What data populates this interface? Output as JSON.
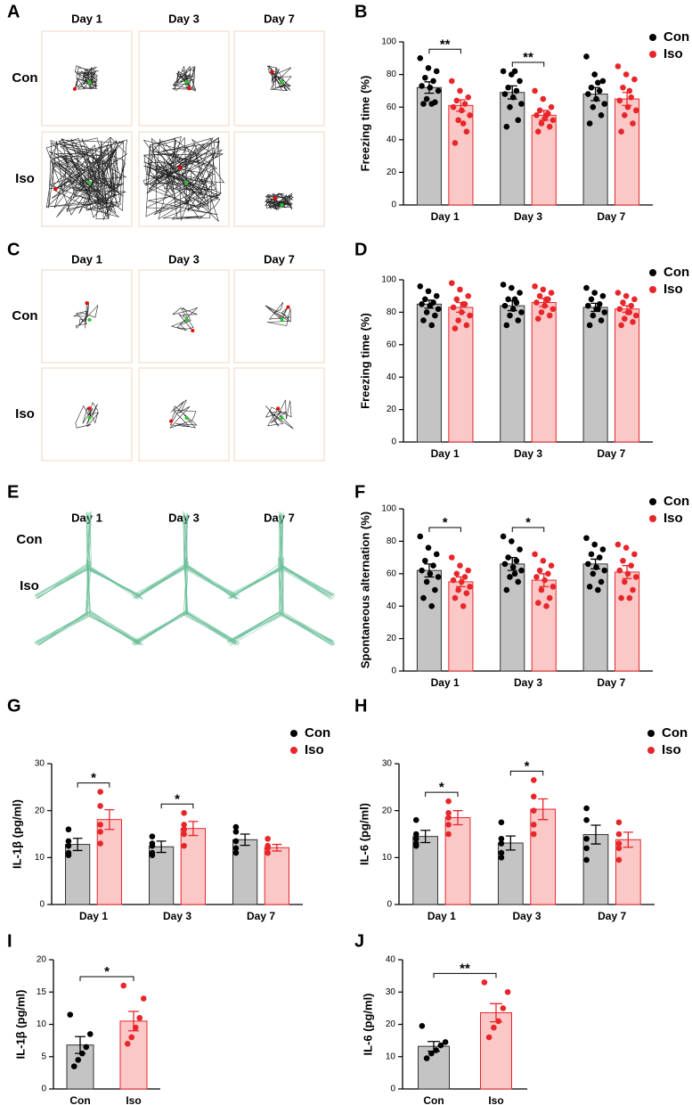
{
  "trajectory_panels": [
    {
      "letter": "A",
      "days": [
        "Day 1",
        "Day 3",
        "Day 7"
      ],
      "groups": [
        "Con",
        "Iso"
      ]
    },
    {
      "letter": "C",
      "days": [
        "Day 1",
        "Day 3",
        "Day 7"
      ],
      "groups": [
        "Con",
        "Iso"
      ]
    },
    {
      "letter": "E",
      "days": [
        "Day 1",
        "Day 3",
        "Day 7"
      ],
      "groups": [
        "Con",
        "Iso"
      ]
    }
  ],
  "chart_data": [
    {
      "type": "bar",
      "panel": "B",
      "ylabel": "Freezing time (%)",
      "categories": [
        "Day 1",
        "Day 3",
        "Day 7"
      ],
      "ylim": [
        0,
        100
      ],
      "yticks": [
        0,
        20,
        40,
        60,
        80,
        100
      ],
      "legend": "upper right",
      "significance": [
        "**",
        "**",
        null
      ],
      "series": [
        {
          "name": "Con",
          "color": "#000000",
          "bar_color": "#c4c4c4",
          "values": [
            72,
            69,
            68
          ],
          "errors": [
            3.5,
            4,
            4
          ],
          "points": [
            [
              90,
              84,
              82,
              78,
              76,
              73,
              72,
              70,
              65,
              63,
              62,
              62
            ],
            [
              82,
              80,
              76,
              72,
              70,
              68,
              66,
              62,
              60,
              52,
              48,
              82
            ],
            [
              91,
              80,
              76,
              72,
              70,
              68,
              65,
              62,
              60,
              55,
              50,
              75
            ]
          ]
        },
        {
          "name": "Iso",
          "color": "#e8262a",
          "bar_color": "#fbc8c8",
          "values": [
            61,
            55,
            65
          ],
          "errors": [
            3.5,
            3,
            4
          ],
          "points": [
            [
              76,
              70,
              66,
              64,
              62,
              60,
              58,
              55,
              52,
              45,
              38,
              50
            ],
            [
              70,
              65,
              60,
              58,
              56,
              55,
              53,
              52,
              50,
              48,
              45,
              55
            ],
            [
              85,
              80,
              77,
              72,
              66,
              64,
              60,
              58,
              55,
              50,
              45,
              70
            ]
          ]
        }
      ]
    },
    {
      "type": "bar",
      "panel": "D",
      "ylabel": "Freezing time (%)",
      "categories": [
        "Day 1",
        "Day 3",
        "Day 7"
      ],
      "ylim": [
        0,
        100
      ],
      "yticks": [
        0,
        20,
        40,
        60,
        80,
        100
      ],
      "legend": "upper right",
      "significance": [
        null,
        null,
        null
      ],
      "series": [
        {
          "name": "Con",
          "color": "#000000",
          "bar_color": "#c4c4c4",
          "values": [
            85,
            84,
            83
          ],
          "errors": [
            2.5,
            3,
            2.5
          ],
          "points": [
            [
              96,
              93,
              90,
              88,
              86,
              85,
              84,
              82,
              80,
              78,
              75,
              72
            ],
            [
              97,
              95,
              92,
              88,
              86,
              84,
              82,
              80,
              78,
              75,
              72,
              88
            ],
            [
              95,
              92,
              90,
              88,
              85,
              84,
              82,
              80,
              78,
              75,
              72,
              82
            ]
          ]
        },
        {
          "name": "Iso",
          "color": "#e8262a",
          "bar_color": "#fbc8c8",
          "values": [
            83,
            86,
            82
          ],
          "errors": [
            3,
            2.5,
            2
          ],
          "points": [
            [
              98,
              94,
              90,
              88,
              85,
              83,
              80,
              78,
              75,
              72,
              70,
              85
            ],
            [
              96,
              94,
              92,
              90,
              88,
              86,
              84,
              82,
              80,
              78,
              76,
              88
            ],
            [
              92,
              90,
              88,
              86,
              84,
              82,
              80,
              78,
              76,
              74,
              72,
              80
            ]
          ]
        }
      ]
    },
    {
      "type": "bar",
      "panel": "F",
      "ylabel": "Spontaneous alternation (%)",
      "categories": [
        "Day 1",
        "Day 3",
        "Day 7"
      ],
      "ylim": [
        0,
        100
      ],
      "yticks": [
        0,
        20,
        40,
        60,
        80,
        100
      ],
      "legend": "upper right",
      "significance": [
        "*",
        "*",
        null
      ],
      "series": [
        {
          "name": "Con",
          "color": "#000000",
          "bar_color": "#c4c4c4",
          "values": [
            62,
            66,
            66
          ],
          "errors": [
            4,
            4,
            3
          ],
          "points": [
            [
              83,
              76,
              72,
              68,
              65,
              62,
              60,
              58,
              55,
              50,
              45,
              40
            ],
            [
              83,
              80,
              75,
              70,
              68,
              66,
              64,
              62,
              58,
              55,
              50,
              60
            ],
            [
              82,
              78,
              75,
              72,
              70,
              66,
              64,
              62,
              60,
              55,
              52,
              50
            ]
          ]
        },
        {
          "name": "Iso",
          "color": "#e8262a",
          "bar_color": "#fbc8c8",
          "values": [
            55,
            56,
            61
          ],
          "errors": [
            3,
            4,
            4
          ],
          "points": [
            [
              70,
              65,
              62,
              60,
              58,
              56,
              55,
              52,
              50,
              48,
              45,
              40
            ],
            [
              72,
              68,
              65,
              62,
              60,
              58,
              56,
              52,
              50,
              45,
              42,
              40
            ],
            [
              78,
              76,
              72,
              68,
              65,
              62,
              60,
              58,
              55,
              50,
              45,
              45
            ]
          ]
        }
      ]
    },
    {
      "type": "bar",
      "panel": "G",
      "ylabel": "IL-1β (pg/ml)",
      "categories": [
        "Day 1",
        "Day 3",
        "Day 7"
      ],
      "ylim": [
        0,
        30
      ],
      "yticks": [
        0,
        10,
        20,
        30
      ],
      "legend": "upper right",
      "significance": [
        "*",
        "*",
        null
      ],
      "series": [
        {
          "name": "Con",
          "color": "#000000",
          "bar_color": "#c4c4c4",
          "values": [
            12.8,
            12.3,
            13.8
          ],
          "errors": [
            1.3,
            1.2,
            1.2
          ],
          "points": [
            [
              16,
              13.5,
              12.5,
              11,
              10.5
            ],
            [
              14.5,
              13,
              12.5,
              11,
              10.5
            ],
            [
              16.5,
              15.5,
              13.5,
              12,
              11
            ]
          ]
        },
        {
          "name": "Iso",
          "color": "#e8262a",
          "bar_color": "#fbc8c8",
          "values": [
            18.1,
            16.2,
            12.1
          ],
          "errors": [
            2.1,
            1.5,
            0.7
          ],
          "points": [
            [
              24,
              21,
              17,
              15.5,
              13
            ],
            [
              19.5,
              17,
              16,
              15,
              12.5
            ],
            [
              14,
              12.5,
              12,
              11,
              11
            ]
          ]
        }
      ]
    },
    {
      "type": "bar",
      "panel": "H",
      "ylabel": "IL-6 (pg/ml)",
      "categories": [
        "Day 1",
        "Day 3",
        "Day 7"
      ],
      "ylim": [
        0,
        30
      ],
      "yticks": [
        0,
        10,
        20,
        30
      ],
      "legend": "upper right",
      "significance": [
        "*",
        "*",
        null
      ],
      "series": [
        {
          "name": "Con",
          "color": "#000000",
          "bar_color": "#c4c4c4",
          "values": [
            14.5,
            13.1,
            14.9
          ],
          "errors": [
            1.3,
            1.5,
            2
          ],
          "points": [
            [
              18,
              15,
              14,
              13,
              12.5
            ],
            [
              17.5,
              14,
              13,
              11,
              10
            ],
            [
              20.5,
              18,
              14,
              12,
              9.5
            ]
          ]
        },
        {
          "name": "Iso",
          "color": "#e8262a",
          "bar_color": "#fbc8c8",
          "values": [
            18.5,
            20.3,
            13.8
          ],
          "errors": [
            1.5,
            2.2,
            1.6
          ],
          "points": [
            [
              22,
              19.5,
              18.5,
              17,
              15
            ],
            [
              26.5,
              23,
              20,
              17,
              15
            ],
            [
              17.5,
              15,
              13,
              12,
              9.5
            ]
          ]
        }
      ]
    },
    {
      "type": "bar",
      "panel": "I",
      "ylabel": "IL-1β (pg/ml)",
      "categories": [
        "Con",
        "Iso"
      ],
      "ylim": [
        0,
        20
      ],
      "yticks": [
        0,
        5,
        10,
        15,
        20
      ],
      "significance": "*",
      "colors": [
        "#000000",
        "#e8262a"
      ],
      "bar_colors": [
        "#c4c4c4",
        "#fbc8c8"
      ],
      "values": [
        6.8,
        10.5
      ],
      "errors": [
        1.3,
        1.5
      ],
      "points": [
        [
          11.5,
          8.5,
          6.5,
          5.5,
          4.5,
          3.5
        ],
        [
          16,
          14,
          11,
          9.5,
          8,
          7
        ]
      ]
    },
    {
      "type": "bar",
      "panel": "J",
      "ylabel": "IL-6 (pg/ml)",
      "categories": [
        "Con",
        "Iso"
      ],
      "ylim": [
        0,
        40
      ],
      "yticks": [
        0,
        10,
        20,
        30,
        40
      ],
      "significance": "**",
      "colors": [
        "#000000",
        "#e8262a"
      ],
      "bar_colors": [
        "#c4c4c4",
        "#fbc8c8"
      ],
      "values": [
        13.2,
        23.6
      ],
      "errors": [
        1.5,
        2.8
      ],
      "points": [
        [
          19.5,
          14.5,
          13.5,
          12,
          11,
          9.5
        ],
        [
          33,
          30,
          25,
          21,
          19,
          16
        ]
      ]
    }
  ]
}
